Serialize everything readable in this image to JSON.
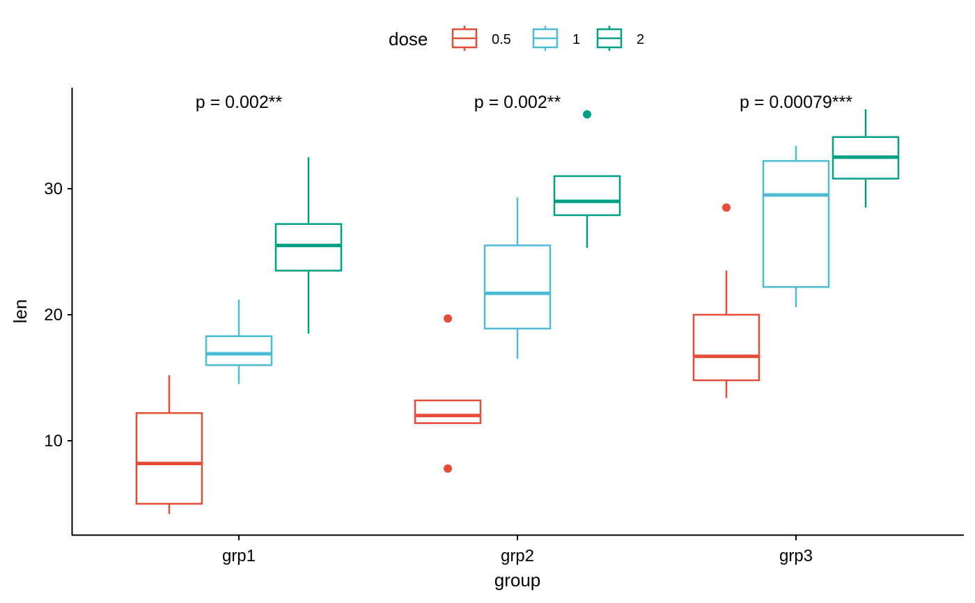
{
  "chart_data": {
    "type": "boxplot",
    "xlabel": "group",
    "ylabel": "len",
    "ylim": [
      3,
      38
    ],
    "yticks": [
      10,
      20,
      30
    ],
    "categories": [
      "grp1",
      "grp2",
      "grp3"
    ],
    "legend": {
      "title": "dose",
      "position": "top",
      "entries": [
        {
          "label": "0.5",
          "color": "#E64B35"
        },
        {
          "label": "1",
          "color": "#4DBBD5"
        },
        {
          "label": "2",
          "color": "#00A087"
        }
      ]
    },
    "p_values": [
      "p = 0.002**",
      "p = 0.002**",
      "p = 0.00079***"
    ],
    "boxes": [
      {
        "group": "grp1",
        "dose": "0.5",
        "min": 4.2,
        "q1": 5.0,
        "median": 8.2,
        "q3": 12.2,
        "max": 15.2,
        "outliers": []
      },
      {
        "group": "grp1",
        "dose": "1",
        "min": 14.5,
        "q1": 16.0,
        "median": 16.9,
        "q3": 18.3,
        "max": 21.2,
        "outliers": []
      },
      {
        "group": "grp1",
        "dose": "2",
        "min": 18.5,
        "q1": 23.5,
        "median": 25.5,
        "q3": 27.2,
        "max": 32.5,
        "outliers": []
      },
      {
        "group": "grp2",
        "dose": "0.5",
        "min": 11.4,
        "q1": 11.4,
        "median": 12.0,
        "q3": 13.2,
        "max": 13.2,
        "outliers": [
          19.7,
          7.8
        ]
      },
      {
        "group": "grp2",
        "dose": "1",
        "min": 16.5,
        "q1": 18.9,
        "median": 21.7,
        "q3": 25.5,
        "max": 29.3,
        "outliers": []
      },
      {
        "group": "grp2",
        "dose": "2",
        "min": 25.3,
        "q1": 27.9,
        "median": 29.0,
        "q3": 31.0,
        "max": 31.0,
        "outliers": [
          35.9
        ]
      },
      {
        "group": "grp3",
        "dose": "0.5",
        "min": 13.4,
        "q1": 14.8,
        "median": 16.7,
        "q3": 20.0,
        "max": 23.5,
        "outliers": [
          28.5
        ]
      },
      {
        "group": "grp3",
        "dose": "1",
        "min": 20.6,
        "q1": 22.2,
        "median": 29.5,
        "q3": 32.2,
        "max": 33.4,
        "outliers": []
      },
      {
        "group": "grp3",
        "dose": "2",
        "min": 28.5,
        "q1": 30.8,
        "median": 32.5,
        "q3": 34.1,
        "max": 36.3,
        "outliers": []
      }
    ]
  }
}
